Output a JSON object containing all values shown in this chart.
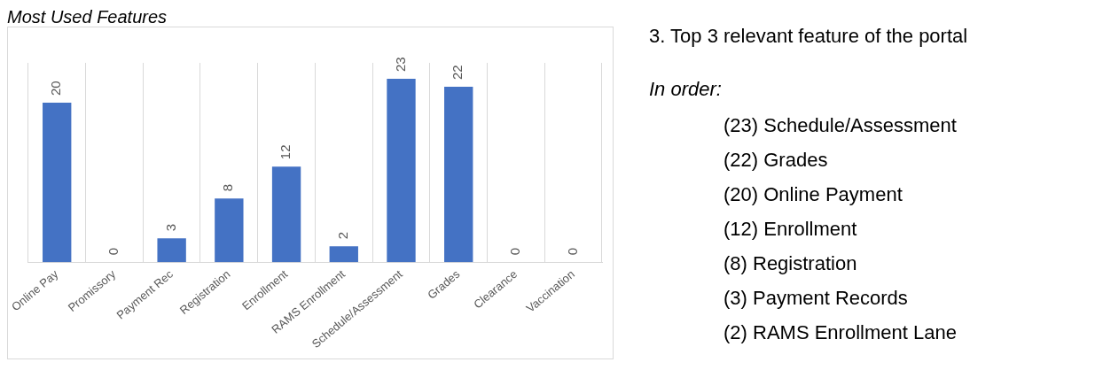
{
  "chart_data": [
    {
      "type": "bar",
      "title": "Most Used Features",
      "categories": [
        "Online Pay",
        "Promissory",
        "Payment Rec",
        "Registration",
        "Enrollment",
        "RAMS Enrollment",
        "Schedule/Assessment",
        "Grades",
        "Clearance",
        "Vaccination"
      ],
      "values": [
        20,
        0,
        3,
        8,
        12,
        2,
        23,
        22,
        0,
        0
      ],
      "color": "#4472c4",
      "data_labels": true,
      "grid": "x",
      "tick_labels": "x"
    },
    {
      "type": "other",
      "title": "3. Top 3 relevant feature of the portal",
      "subtitle": "In order:",
      "annotations": [
        "(23) Schedule/Assessment",
        "(22) Grades",
        "(20) Online Payment",
        "(12) Enrollment",
        "(8) Registration",
        "(3) Payment Records",
        "(2) RAMS Enrollment Lane"
      ]
    }
  ]
}
